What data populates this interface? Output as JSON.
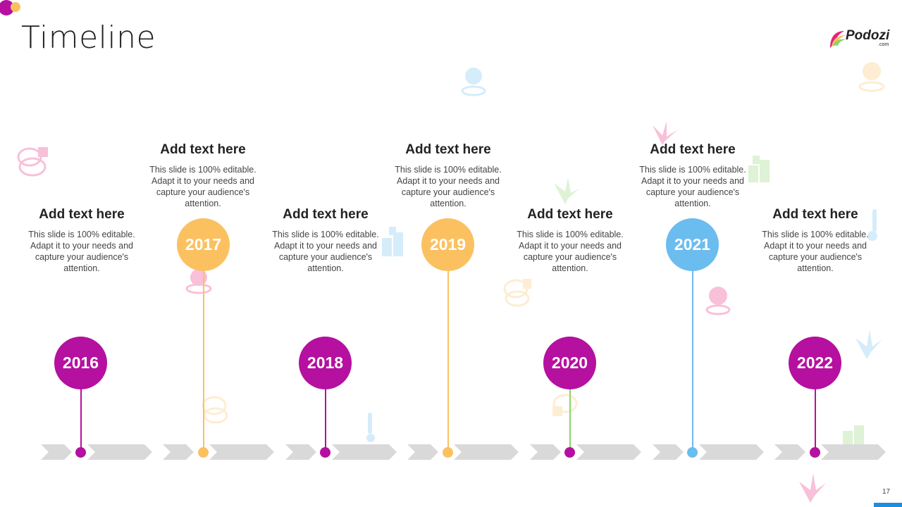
{
  "slide": {
    "title": "Timeline",
    "page_number": "17"
  },
  "logo": {
    "name": "Podozi",
    "sub": ".com"
  },
  "colors": {
    "purple": "#b5109f",
    "orange": "#fbc160",
    "blue": "#6bbcef",
    "green": "#8bd46a",
    "chevron": "#d9d9d9"
  },
  "milestones": [
    {
      "year": "2016",
      "heading": "Add text here",
      "body": "This slide is 100% editable. Adapt it to your needs and capture your audience's attention."
    },
    {
      "year": "2017",
      "heading": "Add text here",
      "body": "This slide is 100% editable. Adapt it to your needs and capture your audience's attention."
    },
    {
      "year": "2018",
      "heading": "Add text here",
      "body": "This slide is 100% editable. Adapt it to your needs and capture your audience's attention."
    },
    {
      "year": "2019",
      "heading": "Add text here",
      "body": "This slide is 100% editable. Adapt it to your needs and capture your audience's attention."
    },
    {
      "year": "2020",
      "heading": "Add text here",
      "body": "This slide is 100% editable. Adapt it to your needs and capture your audience's attention."
    },
    {
      "year": "2021",
      "heading": "Add text here",
      "body": "This slide is 100% editable. Adapt it to your needs and capture your audience's attention."
    },
    {
      "year": "2022",
      "heading": "Add text here",
      "body": "This slide is 100% editable. Adapt it to your needs and capture your audience's attention."
    }
  ]
}
